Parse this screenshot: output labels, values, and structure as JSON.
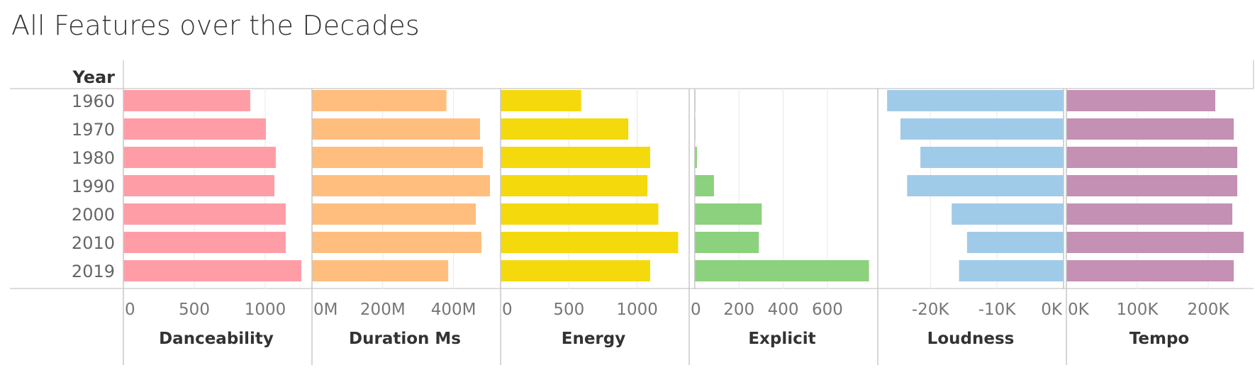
{
  "chart_data": {
    "type": "bar",
    "title": "All Features over the Decades",
    "row_header": "Year",
    "categories": [
      "1960",
      "1970",
      "1980",
      "1990",
      "2000",
      "2010",
      "2019"
    ],
    "series": [
      {
        "name": "Danceability",
        "color": "#ff9da7",
        "values": [
          895,
          1005,
          1075,
          1065,
          1145,
          1145,
          1255
        ],
        "xlim": [
          0,
          1310
        ],
        "ticks": [
          0,
          500,
          1000
        ],
        "tick_labels": [
          "0",
          "500",
          "1000"
        ]
      },
      {
        "name": "Duration Ms",
        "color": "#ffbe7d",
        "values": [
          380000000,
          475000000,
          483000000,
          503000000,
          463000000,
          479000000,
          385000000
        ],
        "xlim": [
          0,
          525000000
        ],
        "ticks": [
          0,
          200000000,
          400000000
        ],
        "tick_labels": [
          "0M",
          "200M",
          "400M"
        ]
      },
      {
        "name": "Energy",
        "color": "#f4d90d",
        "values": [
          590,
          935,
          1095,
          1075,
          1155,
          1300,
          1095
        ],
        "xlim": [
          0,
          1360
        ],
        "ticks": [
          0,
          500,
          1000
        ],
        "tick_labels": [
          "0",
          "500",
          "1000"
        ]
      },
      {
        "name": "Explicit",
        "color": "#8cd17d",
        "values": [
          3,
          3,
          10,
          87,
          303,
          290,
          788
        ],
        "xlim": [
          -25,
          815
        ],
        "ticks": [
          0,
          200,
          400,
          600
        ],
        "tick_labels": [
          "0",
          "200",
          "400",
          "600"
        ]
      },
      {
        "name": "Loudness",
        "color": "#a0cbe8",
        "values": [
          -26500,
          -24500,
          -21500,
          -23500,
          -16800,
          -14500,
          -15700
        ],
        "xlim": [
          -27900,
          0
        ],
        "ticks": [
          -20000,
          -10000,
          0
        ],
        "tick_labels": [
          "-20K",
          "-10K",
          "0K"
        ]
      },
      {
        "name": "Tempo",
        "color": "#c490b4",
        "values": [
          210000,
          236000,
          241000,
          241000,
          234000,
          250000,
          236000
        ],
        "xlim": [
          0,
          262000
        ],
        "ticks": [
          0,
          100000,
          200000
        ],
        "tick_labels": [
          "0K",
          "100K",
          "200K"
        ]
      }
    ],
    "grid": true,
    "legend": "none"
  }
}
